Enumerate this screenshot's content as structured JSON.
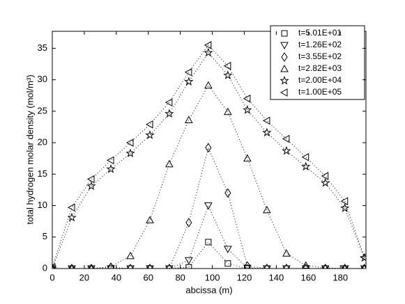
{
  "chart_data": {
    "type": "scatter",
    "xlabel": "abcissa (m)",
    "ylabel": "total hydrogen molar density (mol/m³)",
    "x": [
      0,
      12.2,
      24.4,
      36.6,
      48.8,
      61,
      73.1,
      85.3,
      97.5,
      109.7,
      121.9,
      134.1,
      146.3,
      158.4,
      170.6,
      182.8,
      195
    ],
    "series": [
      {
        "name": "t=5.01E+01",
        "marker": "square",
        "color": "#000000",
        "values": [
          0,
          0,
          0,
          0,
          0,
          0,
          0,
          0.2,
          4.2,
          0.8,
          0,
          0,
          0,
          0,
          0,
          0,
          0
        ]
      },
      {
        "name": "t=1.26E+02",
        "marker": "triangle-down",
        "color": "#000000",
        "values": [
          0,
          0,
          0,
          0,
          0,
          0,
          0,
          1.3,
          10.0,
          3.1,
          0.1,
          0,
          0,
          0,
          0,
          0,
          0
        ]
      },
      {
        "name": "t=3.55E+02",
        "marker": "diamond",
        "color": "#000000",
        "values": [
          0,
          0,
          0,
          0.2,
          0,
          0,
          0,
          7.3,
          19.2,
          12.0,
          0.4,
          0,
          0,
          0,
          0,
          0,
          0
        ]
      },
      {
        "name": "t=2.82E+03",
        "marker": "triangle-up",
        "color": "#000000",
        "values": [
          0,
          0,
          0,
          0.3,
          2.0,
          7.7,
          16.6,
          23.6,
          29.1,
          24.9,
          17.5,
          9.3,
          2.4,
          0.5,
          0.1,
          0,
          0
        ]
      },
      {
        "name": "t=2.00E+04",
        "marker": "star",
        "color": "#000000",
        "values": [
          0,
          8.1,
          13.1,
          15.8,
          18.3,
          21.2,
          24.6,
          29.7,
          34.3,
          30.7,
          25.2,
          21.6,
          18.7,
          16.2,
          13.6,
          9.6,
          1.7
        ]
      },
      {
        "name": "t=1.00E+05",
        "marker": "triangle-left",
        "color": "#000000",
        "values": [
          0.2,
          9.7,
          14.2,
          17.2,
          20.0,
          22.9,
          26.4,
          31.2,
          35.5,
          32.2,
          27.0,
          23.5,
          20.6,
          17.7,
          14.7,
          10.7,
          1.8
        ]
      }
    ],
    "xlim": [
      0,
      196
    ],
    "ylim": [
      0,
      37.7
    ],
    "xticks": [
      0,
      20,
      40,
      60,
      80,
      100,
      120,
      140,
      160,
      180
    ],
    "yticks": [
      0,
      5,
      10,
      15,
      20,
      25,
      30,
      35
    ],
    "grid": false,
    "legend": "upper right"
  }
}
